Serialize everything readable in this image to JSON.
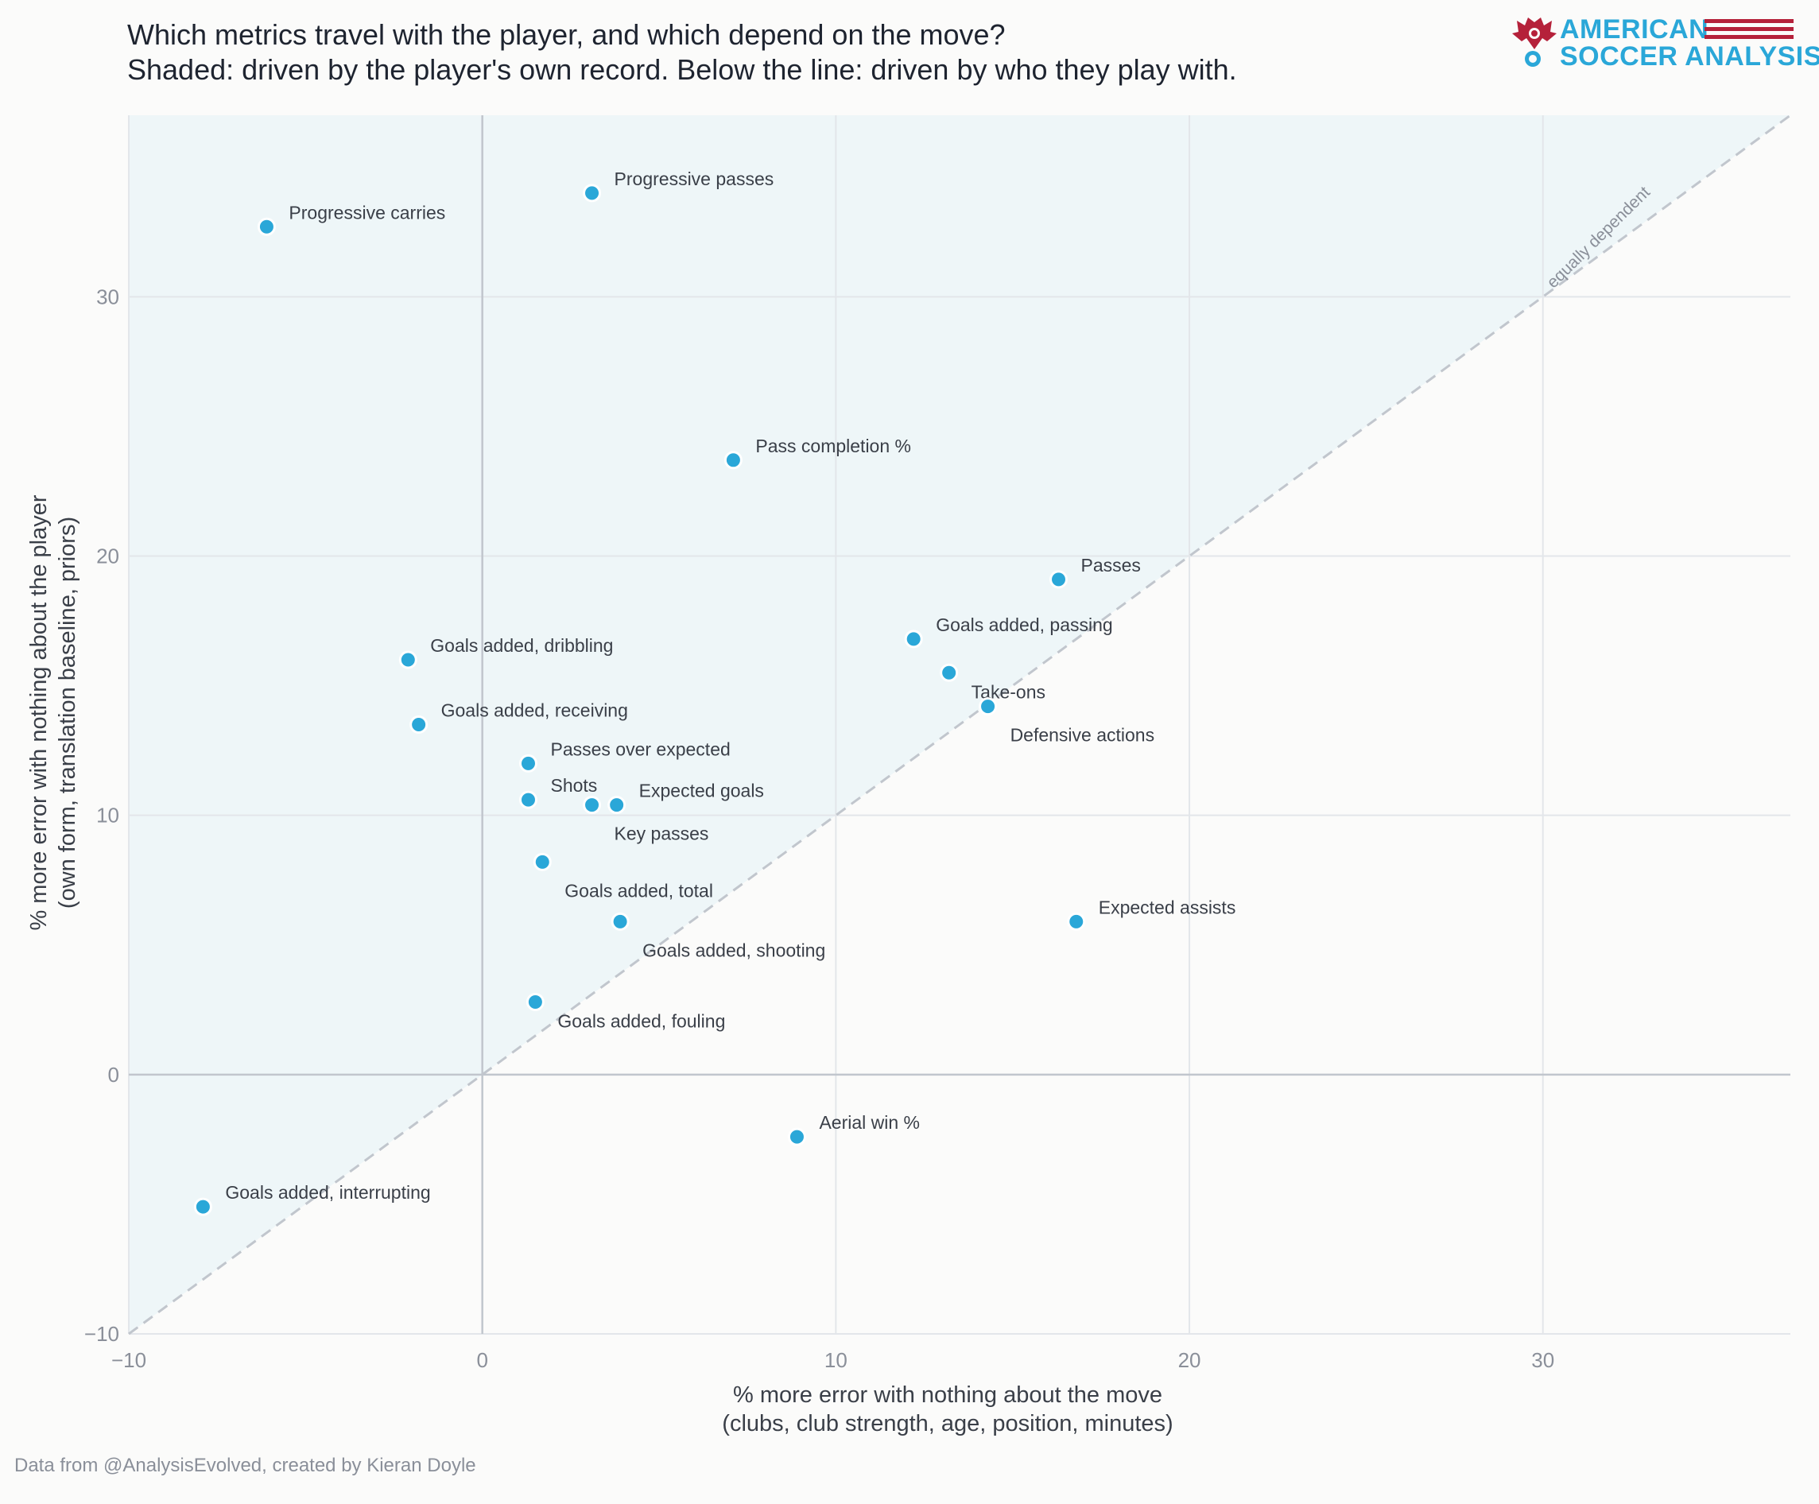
{
  "header": {
    "title": "Which metrics travel with the player, and which depend on the move?",
    "subtitle": "Shaded: driven by the player's own record.   Below the line: driven by who they play with."
  },
  "logo": {
    "line1": "AMERICAN",
    "line2": "SOCCER ANALYSIS",
    "colors": {
      "text": "#2aa7d8",
      "stripes": "#b5213a",
      "eagle": "#b5213a"
    }
  },
  "footer": {
    "credit": "Data from @AnalysisEvolved, created by Kieran Doyle"
  },
  "colors": {
    "point": "#2aa7d8",
    "shade": "#eef6f8",
    "grid": "#e3e6ea",
    "zero_line": "#c1c6cd",
    "diagonal": "#c1c6cd",
    "text": "#3a3f48",
    "tick": "#8a8f99"
  },
  "chart_data": {
    "type": "scatter",
    "xlabel": "% more error with nothing about the move",
    "xlabel_sub": "(clubs, club strength, age, position, minutes)",
    "ylabel": "% more error with nothing about the player",
    "ylabel_sub": "(own form, translation baseline, priors)",
    "xlim": [
      -10,
      37
    ],
    "ylim": [
      -10,
      37
    ],
    "xticks": [
      -10,
      0,
      10,
      20,
      30
    ],
    "yticks": [
      -10,
      0,
      10,
      20,
      30
    ],
    "grid": true,
    "diagonal_label": "equally dependent",
    "shaded_region": "above y = x",
    "points": [
      {
        "label": "Progressive passes",
        "x": 3.1,
        "y": 34.0,
        "label_pos": "right-up"
      },
      {
        "label": "Progressive carries",
        "x": -6.1,
        "y": 32.7,
        "label_pos": "right-up"
      },
      {
        "label": "Pass completion %",
        "x": 7.1,
        "y": 23.7,
        "label_pos": "right-up"
      },
      {
        "label": "Passes",
        "x": 16.3,
        "y": 19.1,
        "label_pos": "right-up"
      },
      {
        "label": "Goals added, passing",
        "x": 12.2,
        "y": 16.8,
        "label_pos": "right-up"
      },
      {
        "label": "Goals added, dribbling",
        "x": -2.1,
        "y": 16.0,
        "label_pos": "right-up"
      },
      {
        "label": "Take-ons",
        "x": 13.2,
        "y": 15.5,
        "label_pos": "right-down"
      },
      {
        "label": "Defensive actions",
        "x": 14.3,
        "y": 14.2,
        "label_pos": "right-far-down"
      },
      {
        "label": "Goals added, receiving",
        "x": -1.8,
        "y": 13.5,
        "label_pos": "right-up"
      },
      {
        "label": "Passes over expected",
        "x": 1.3,
        "y": 12.0,
        "label_pos": "right-up"
      },
      {
        "label": "Shots",
        "x": 1.3,
        "y": 10.6,
        "label_pos": "right-up"
      },
      {
        "label": "Expected goals",
        "x": 3.8,
        "y": 10.4,
        "label_pos": "right-up"
      },
      {
        "label": "Key passes",
        "x": 3.1,
        "y": 10.4,
        "label_pos": "right-far-down"
      },
      {
        "label": "Goals added, total",
        "x": 1.7,
        "y": 8.2,
        "label_pos": "right-far-down"
      },
      {
        "label": "Expected assists",
        "x": 16.8,
        "y": 5.9,
        "label_pos": "right-up"
      },
      {
        "label": "Goals added, shooting",
        "x": 3.9,
        "y": 5.9,
        "label_pos": "right-far-down"
      },
      {
        "label": "Goals added, fouling",
        "x": 1.5,
        "y": 2.8,
        "label_pos": "right-down"
      },
      {
        "label": "Aerial win %",
        "x": 8.9,
        "y": -2.4,
        "label_pos": "right-up"
      },
      {
        "label": "Goals added, interrupting",
        "x": -7.9,
        "y": -5.1,
        "label_pos": "right-up"
      }
    ]
  }
}
